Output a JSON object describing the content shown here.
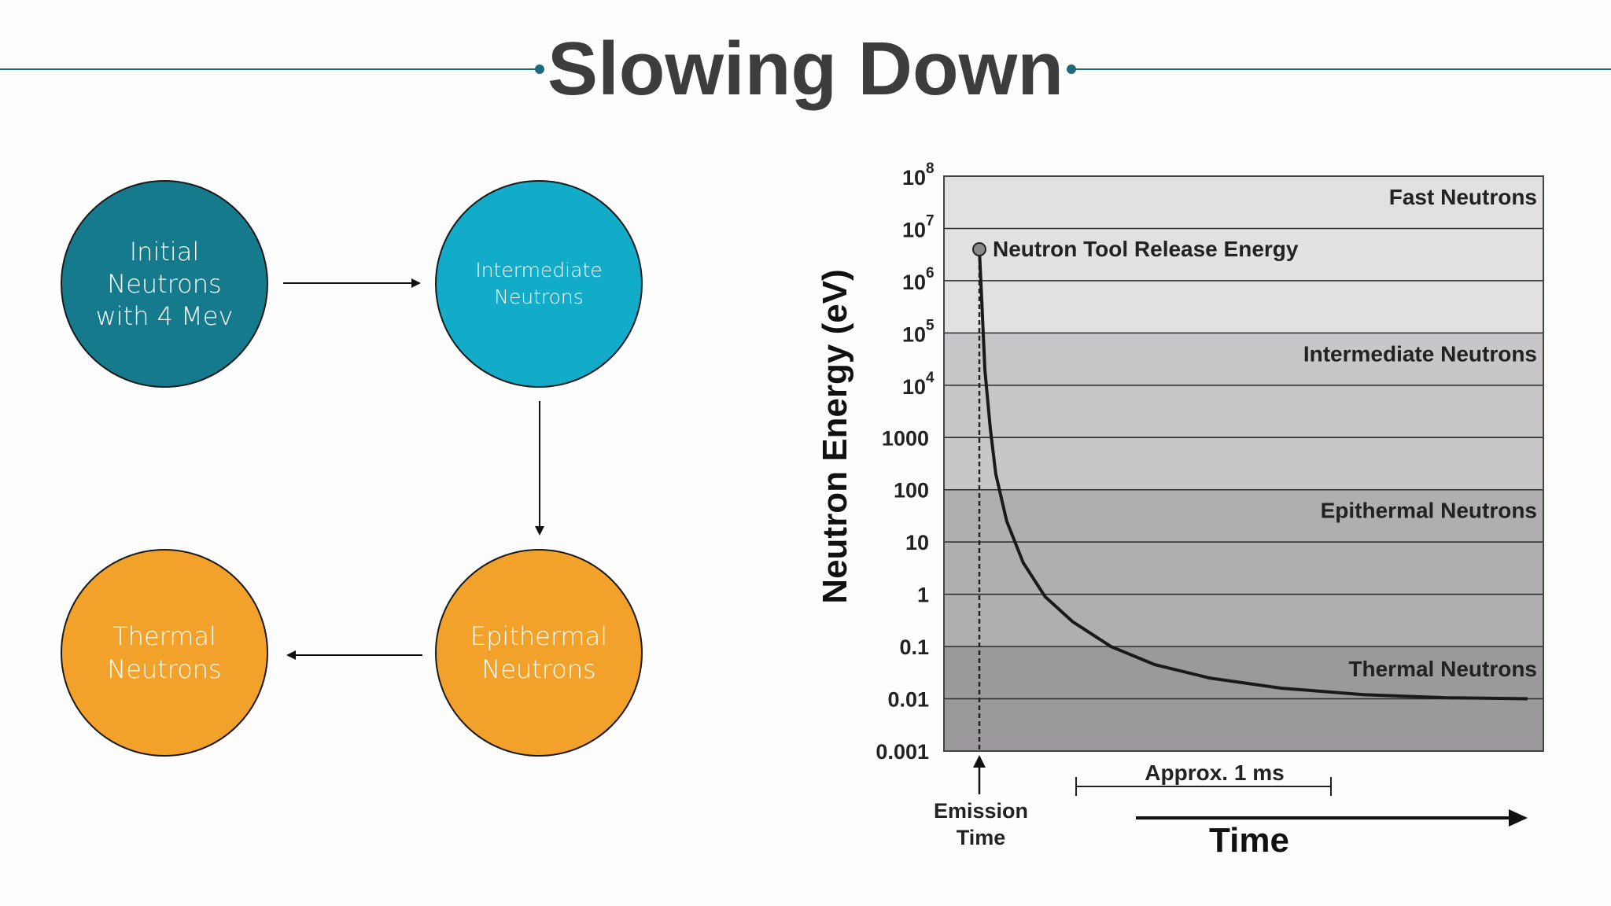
{
  "slide": {
    "title": "Slowing Down",
    "accent_color": "#1b6b78"
  },
  "flow": {
    "nodes": [
      {
        "id": "initial",
        "label": "Initial\nNeutrons\nwith 4 Mev",
        "color": "#157a8c"
      },
      {
        "id": "intermediate",
        "label": "Intermediate\nNeutrons",
        "color": "#12abc8"
      },
      {
        "id": "epithermal",
        "label": "Epithermal\nNeutrons",
        "color": "#f2a12a"
      },
      {
        "id": "thermal",
        "label": "Thermal\nNeutrons",
        "color": "#f2a12a"
      }
    ],
    "edges": [
      {
        "from": "initial",
        "to": "intermediate"
      },
      {
        "from": "intermediate",
        "to": "epithermal"
      },
      {
        "from": "epithermal",
        "to": "thermal"
      }
    ]
  },
  "chart_data": {
    "type": "line",
    "title": "",
    "ylabel": "Neutron Energy (eV)",
    "xlabel": "Time",
    "yscale": "log",
    "ylim": [
      0.001,
      100000000
    ],
    "y_ticks": [
      {
        "value": 100000000,
        "base": "10",
        "exp": "8"
      },
      {
        "value": 10000000,
        "base": "10",
        "exp": "7"
      },
      {
        "value": 1000000,
        "base": "10",
        "exp": "6"
      },
      {
        "value": 100000,
        "base": "10",
        "exp": "5"
      },
      {
        "value": 10000,
        "base": "10",
        "exp": "4"
      },
      {
        "value": 1000,
        "base": "1000",
        "exp": ""
      },
      {
        "value": 100,
        "base": "100",
        "exp": ""
      },
      {
        "value": 10,
        "base": "10",
        "exp": ""
      },
      {
        "value": 1,
        "base": "1",
        "exp": ""
      },
      {
        "value": 0.1,
        "base": "0.1",
        "exp": ""
      },
      {
        "value": 0.01,
        "base": "0.01",
        "exp": ""
      },
      {
        "value": 0.001,
        "base": "0.001",
        "exp": ""
      }
    ],
    "bands": [
      {
        "label": "Fast Neutrons",
        "from": 100000,
        "to": 100000000,
        "color": "#e3e0e2"
      },
      {
        "label": "Intermediate Neutrons",
        "from": 100,
        "to": 100000,
        "color": "#c8c6c8"
      },
      {
        "label": "Epithermal Neutrons",
        "from": 0.1,
        "to": 100,
        "color": "#b0aeb0"
      },
      {
        "label": "Thermal Neutrons",
        "from": 0.001,
        "to": 0.1,
        "color": "#9b999b"
      }
    ],
    "release_point": {
      "label": "Neutron Tool Release Energy",
      "energy": 4000000
    },
    "series": [
      {
        "name": "Neutron energy",
        "t": [
          0,
          0.005,
          0.01,
          0.02,
          0.03,
          0.05,
          0.08,
          0.12,
          0.17,
          0.24,
          0.32,
          0.42,
          0.55,
          0.7,
          0.85,
          1.0
        ],
        "energy": [
          4000000,
          300000,
          20000,
          1500,
          200,
          25,
          4,
          0.9,
          0.3,
          0.1,
          0.045,
          0.025,
          0.016,
          0.012,
          0.0105,
          0.01
        ]
      }
    ],
    "annotations": {
      "emission": "Emission\nTime",
      "duration": "Approx. 1 ms",
      "time_axis": "Time"
    }
  }
}
